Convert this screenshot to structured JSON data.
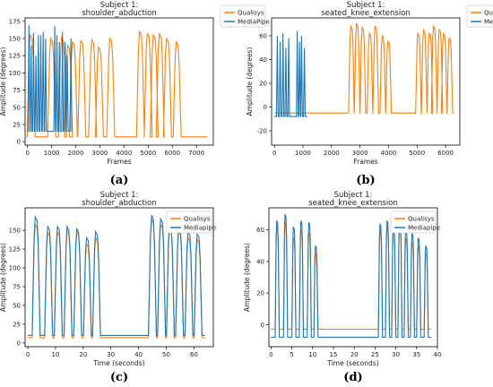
{
  "colors": {
    "qualisys": "#ff7f0e",
    "mediapipe": "#1f77b4"
  },
  "chart_data": [
    {
      "type": "line",
      "panel_label": "(a)",
      "title": "Subject 1:\nshoulder_abduction",
      "xlabel": "Frames",
      "ylabel": "Amplitude (degrees)",
      "xlim": [
        -100,
        7700
      ],
      "ylim": [
        -5,
        180
      ],
      "xticks": [
        0,
        1000,
        2000,
        3000,
        4000,
        5000,
        6000,
        7000
      ],
      "yticks": [
        0,
        25,
        50,
        75,
        100,
        125,
        150,
        175
      ],
      "legend": "top-right",
      "series": [
        {
          "name": "Qualisys",
          "color": "#ff7f0e",
          "base": 7,
          "mode": "pulse",
          "xend": 7450,
          "peaks": [
            [
              150,
              155
            ],
            [
              1000,
              150
            ],
            [
              1450,
              152
            ],
            [
              1700,
              140
            ],
            [
              1900,
              145
            ],
            [
              2250,
              147
            ],
            [
              2700,
              148
            ],
            [
              2980,
              137
            ],
            [
              3450,
              150
            ],
            [
              4680,
              160
            ],
            [
              5000,
              157
            ],
            [
              5250,
              155
            ],
            [
              5500,
              157
            ],
            [
              5800,
              150
            ],
            [
              6200,
              145
            ]
          ],
          "width": 150
        },
        {
          "name": "MediaPipe",
          "color": "#1f77b4",
          "base": 15,
          "mode": "osc",
          "xstart": 0,
          "xend": 1850,
          "peaks": [
            [
              60,
              170
            ],
            [
              150,
              140
            ],
            [
              250,
              158
            ],
            [
              350,
              125
            ],
            [
              450,
              155
            ],
            [
              550,
              155
            ],
            [
              650,
              160
            ],
            [
              750,
              150
            ],
            [
              1130,
              168
            ],
            [
              1220,
              155
            ],
            [
              1320,
              145
            ],
            [
              1450,
              160
            ],
            [
              1560,
              145
            ],
            [
              1650,
              125
            ],
            [
              1800,
              150
            ]
          ],
          "width": 60
        }
      ]
    },
    {
      "type": "line",
      "panel_label": "(b)",
      "title": "Subject 1:\nseated_knee_extension",
      "xlabel": "Frames",
      "ylabel": "Amplitude (degrees)",
      "xlim": [
        -100,
        6500
      ],
      "ylim": [
        -32,
        75
      ],
      "xticks": [
        0,
        1000,
        2000,
        3000,
        4000,
        5000,
        6000
      ],
      "yticks": [
        -20,
        0,
        20,
        40,
        60
      ],
      "legend": "top-right",
      "series": [
        {
          "name": "Qualisys",
          "color": "#ff7f0e",
          "base": -5,
          "mode": "pulse",
          "xend": 6300,
          "peaks": [
            [
              2700,
              68
            ],
            [
              2900,
              70
            ],
            [
              3100,
              67
            ],
            [
              3350,
              62
            ],
            [
              3550,
              68
            ],
            [
              3800,
              60
            ],
            [
              4000,
              55
            ],
            [
              5050,
              62
            ],
            [
              5250,
              65
            ],
            [
              5450,
              62
            ],
            [
              5600,
              68
            ],
            [
              5800,
              65
            ],
            [
              5950,
              62
            ],
            [
              6150,
              58
            ]
          ],
          "width": 90
        },
        {
          "name": "MediaPipe",
          "color": "#1f77b4",
          "base": -8,
          "mode": "osc",
          "xstart": 0,
          "xend": 1150,
          "peaks": [
            [
              100,
              60
            ],
            [
              200,
              55
            ],
            [
              300,
              62
            ],
            [
              400,
              50
            ],
            [
              500,
              58
            ],
            [
              800,
              64
            ],
            [
              880,
              55
            ],
            [
              950,
              60
            ],
            [
              1050,
              50
            ]
          ],
          "width": 50
        }
      ]
    },
    {
      "type": "line",
      "panel_label": "(c)",
      "title": "Subject 1:\nshoulder_abduction",
      "xlabel": "Time (seconds)",
      "ylabel": "Amplitude (degrees)",
      "xlim": [
        -1,
        67
      ],
      "ylim": [
        -5,
        180
      ],
      "xticks": [
        0,
        10,
        20,
        30,
        40,
        50,
        60
      ],
      "yticks": [
        0,
        25,
        50,
        75,
        100,
        125,
        150
      ],
      "legend": "top-right",
      "series": [
        {
          "name": "Qualisys",
          "color": "#ff7f0e",
          "base": 7,
          "mode": "pulse",
          "xstart": 0,
          "xend": 64,
          "peaks": [
            [
              3,
              158
            ],
            [
              7.5,
              147
            ],
            [
              11,
              148
            ],
            [
              14.5,
              150
            ],
            [
              18,
              148
            ],
            [
              21.5,
              132
            ],
            [
              24.8,
              140
            ],
            [
              45,
              165
            ],
            [
              48.3,
              158
            ],
            [
              51.5,
              150
            ],
            [
              54.8,
              148
            ],
            [
              58.2,
              140
            ],
            [
              61.5,
              138
            ]
          ],
          "width": 1.3
        },
        {
          "name": "Mediapipe",
          "color": "#1f77b4",
          "base": 10,
          "mode": "pulse",
          "xstart": 0,
          "xend": 64,
          "peaks": [
            [
              3,
              168
            ],
            [
              7.5,
              155
            ],
            [
              11,
              155
            ],
            [
              14.5,
              155
            ],
            [
              18,
              152
            ],
            [
              21.5,
              140
            ],
            [
              24.8,
              148
            ],
            [
              45,
              170
            ],
            [
              48.3,
              165
            ],
            [
              51.5,
              158
            ],
            [
              54.8,
              155
            ],
            [
              58.2,
              148
            ],
            [
              61.5,
              145
            ]
          ],
          "width": 1.3
        }
      ]
    },
    {
      "type": "line",
      "panel_label": "(d)",
      "title": "Subject 1:\nseated_knee_extension",
      "xlabel": "Time (seconds)",
      "ylabel": "Amplitude (degrees)",
      "xlim": [
        -0.5,
        40
      ],
      "ylim": [
        -14,
        74
      ],
      "xticks": [
        0,
        5,
        10,
        15,
        20,
        25,
        30,
        35,
        40
      ],
      "yticks": [
        0,
        20,
        40,
        60
      ],
      "legend": "top-right",
      "series": [
        {
          "name": "Qualisys",
          "color": "#ff7f0e",
          "base": -3,
          "mode": "pulse",
          "xstart": 0,
          "xend": 38.5,
          "peaks": [
            [
              1.5,
              62
            ],
            [
              3.5,
              65
            ],
            [
              5.5,
              55
            ],
            [
              7.3,
              60
            ],
            [
              9.2,
              58
            ],
            [
              10.8,
              45
            ],
            [
              26.3,
              60
            ],
            [
              28,
              62
            ],
            [
              29.5,
              60
            ],
            [
              31,
              63
            ],
            [
              32.5,
              55
            ],
            [
              34,
              52
            ],
            [
              35.5,
              50
            ],
            [
              37.3,
              45
            ]
          ],
          "width": 0.45
        },
        {
          "name": "Mediapipe",
          "color": "#1f77b4",
          "base": -8,
          "mode": "pulse",
          "xstart": 0,
          "xend": 38.5,
          "peaks": [
            [
              1.5,
              66
            ],
            [
              3.5,
              70
            ],
            [
              5.5,
              62
            ],
            [
              7.3,
              66
            ],
            [
              9.2,
              65
            ],
            [
              10.8,
              50
            ],
            [
              26.3,
              64
            ],
            [
              28,
              66
            ],
            [
              29.5,
              64
            ],
            [
              31,
              68
            ],
            [
              32.5,
              62
            ],
            [
              34,
              58
            ],
            [
              35.5,
              55
            ],
            [
              37.3,
              50
            ]
          ],
          "width": 0.45
        }
      ]
    }
  ]
}
